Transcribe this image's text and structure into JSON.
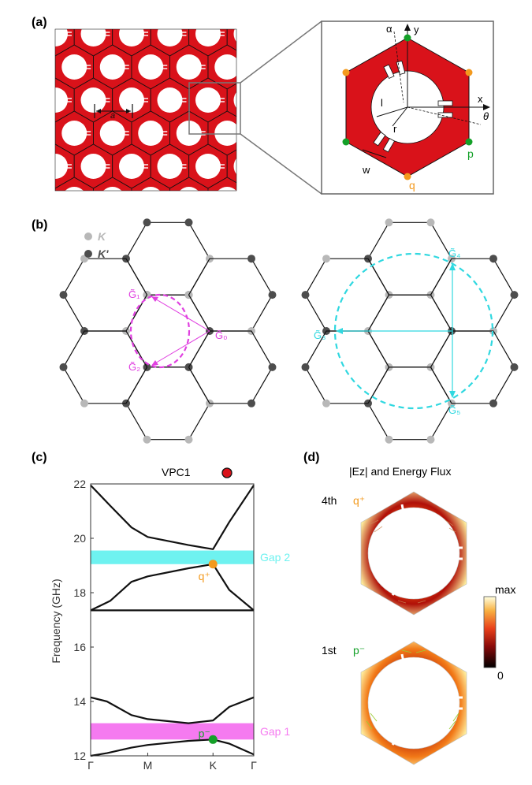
{
  "panel_labels": {
    "a": "(a)",
    "b": "(b)",
    "c": "(c)",
    "d": "(d)"
  },
  "panel_a": {
    "lattice_label": "a",
    "zoom_labels": {
      "alpha": "α",
      "y": "y",
      "x": "x",
      "theta": "θ",
      "l": "l",
      "r": "r",
      "w": "w",
      "p": "p",
      "q": "q"
    },
    "colors": {
      "fill": "#d9121a",
      "orange": "#f39a1e",
      "green": "#14a028",
      "frame": "#666666"
    }
  },
  "panel_b": {
    "legend": [
      {
        "label": "K",
        "color": "#b8b8b8"
      },
      {
        "label": "K'",
        "color": "#4d4d4d"
      }
    ],
    "left_vectors": {
      "g1": "G̃₁",
      "g2": "G̃₂",
      "g0": "G̃₀",
      "color": "#e040e0"
    },
    "right_vectors": {
      "g3": "G̃₃",
      "g4": "G̃₄",
      "g5": "G̃₅",
      "color": "#30d8e0"
    }
  },
  "panel_c": {
    "title": "VPC1",
    "ylabel": "Frequency (GHz)",
    "yticks": [
      "22",
      "20",
      "18",
      "16",
      "14",
      "12"
    ],
    "xticks": [
      "Γ",
      "M",
      "K",
      "Γ"
    ],
    "gap_labels": {
      "gap2": "Gap 2",
      "gap1": "Gap 1"
    },
    "point_labels": {
      "q": "q⁺",
      "p": "p⁻"
    },
    "colors": {
      "gap2": "#6ef2f0",
      "gap1": "#f57af0",
      "q": "#f39a1e",
      "p": "#14a028"
    }
  },
  "chart_data": {
    "type": "line",
    "title": "VPC1",
    "xlabel": "",
    "ylabel": "Frequency (GHz)",
    "ylim": [
      12,
      22
    ],
    "x": [
      "Γ",
      "M",
      "K",
      "Γ"
    ],
    "series": [
      {
        "values": [
          [
            0,
            12.0
          ],
          [
            0.1,
            12.1
          ],
          [
            0.25,
            12.3
          ],
          [
            0.35,
            12.4
          ],
          [
            0.6,
            12.55
          ],
          [
            0.75,
            12.6
          ],
          [
            0.85,
            12.45
          ],
          [
            1,
            12.05
          ]
        ]
      },
      {
        "values": [
          [
            0,
            14.15
          ],
          [
            0.1,
            14.0
          ],
          [
            0.25,
            13.5
          ],
          [
            0.35,
            13.35
          ],
          [
            0.6,
            13.2
          ],
          [
            0.75,
            13.3
          ],
          [
            0.85,
            13.8
          ],
          [
            1,
            14.15
          ]
        ]
      },
      {
        "values": [
          [
            0,
            17.35
          ],
          [
            0.12,
            17.7
          ],
          [
            0.25,
            18.4
          ],
          [
            0.35,
            18.6
          ],
          [
            0.6,
            18.9
          ],
          [
            0.75,
            19.05
          ],
          [
            0.85,
            18.1
          ],
          [
            1,
            17.35
          ]
        ]
      },
      {
        "values": [
          [
            0,
            21.95
          ],
          [
            0.12,
            21.2
          ],
          [
            0.25,
            20.4
          ],
          [
            0.35,
            20.05
          ],
          [
            0.6,
            19.75
          ],
          [
            0.75,
            19.6
          ],
          [
            0.85,
            20.6
          ],
          [
            1,
            21.95
          ]
        ]
      },
      {
        "values": [
          [
            0,
            17.35
          ],
          [
            1,
            17.35
          ]
        ]
      }
    ],
    "gaps": [
      {
        "label": "Gap 2",
        "from": 19.05,
        "to": 19.55
      },
      {
        "label": "Gap 1",
        "from": 12.6,
        "to": 13.2
      }
    ],
    "points": [
      {
        "label": "q⁺",
        "x": 0.75,
        "y": 19.05
      },
      {
        "label": "p⁻",
        "x": 0.75,
        "y": 12.6
      }
    ]
  },
  "panel_d": {
    "title": "|Ez| and Energy Flux",
    "band_4": "4th",
    "state_4": "q⁺",
    "band_1": "1st",
    "state_1": "p⁻",
    "colorbar_max": "max",
    "colorbar_min": "0"
  }
}
